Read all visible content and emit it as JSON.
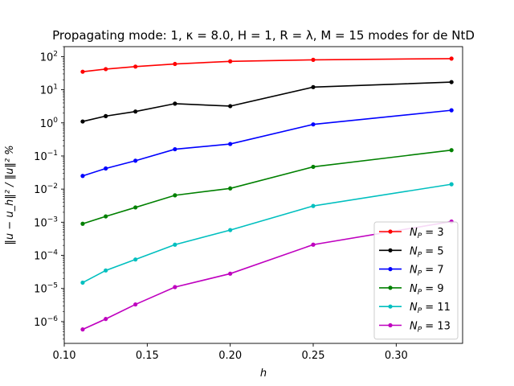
{
  "chart_data": {
    "type": "line",
    "title": "Propagating mode: 1, κ = 8.0, H = 1, R = λ, M = 15 modes for de NtD",
    "xlabel": "h",
    "ylabel": "‖u − u_h‖² / ‖u‖² %",
    "xscale": "linear",
    "yscale": "log",
    "xlim": [
      0.1,
      0.34
    ],
    "ylim": [
      2.2e-07,
      200
    ],
    "xticks": [
      "0.10",
      "0.15",
      "0.20",
      "0.25",
      "0.30"
    ],
    "xtick_values": [
      0.1,
      0.15,
      0.2,
      0.25,
      0.3
    ],
    "yticks": [
      "10^-6",
      "10^-5",
      "10^-4",
      "10^-3",
      "10^-2",
      "10^-1",
      "10^0",
      "10^1",
      "10^2"
    ],
    "ytick_exponents": [
      -6,
      -5,
      -4,
      -3,
      -2,
      -1,
      0,
      1,
      2
    ],
    "grid": false,
    "legend_position": "bottom-right",
    "x": [
      0.1111,
      0.125,
      0.1429,
      0.1667,
      0.2,
      0.25,
      0.3333
    ],
    "series": [
      {
        "name": "N_P = 3",
        "label_main": "N",
        "label_sub": "P",
        "label_rest": " = 3",
        "color": "#ff0000",
        "values": [
          35,
          42,
          50,
          60,
          72,
          80,
          87
        ]
      },
      {
        "name": "N_P = 5",
        "label_main": "N",
        "label_sub": "P",
        "label_rest": " = 5",
        "color": "#000000",
        "values": [
          1.1,
          1.6,
          2.2,
          3.8,
          3.2,
          12,
          17
        ]
      },
      {
        "name": "N_P = 7",
        "label_main": "N",
        "label_sub": "P",
        "label_rest": " = 7",
        "color": "#0000ff",
        "values": [
          0.025,
          0.042,
          0.072,
          0.16,
          0.23,
          0.9,
          2.4
        ]
      },
      {
        "name": "N_P = 9",
        "label_main": "N",
        "label_sub": "P",
        "label_rest": " = 9",
        "color": "#008000",
        "values": [
          0.0009,
          0.0015,
          0.0028,
          0.0065,
          0.0105,
          0.047,
          0.15
        ]
      },
      {
        "name": "N_P = 11",
        "label_main": "N",
        "label_sub": "P",
        "label_rest": " = 11",
        "color": "#00bfbf",
        "values": [
          1.5e-05,
          3.5e-05,
          7.5e-05,
          0.00021,
          0.00058,
          0.0031,
          0.014
        ]
      },
      {
        "name": "N_P = 13",
        "label_main": "N",
        "label_sub": "P",
        "label_rest": " = 13",
        "color": "#bf00bf",
        "values": [
          5.8e-07,
          1.2e-06,
          3.3e-06,
          1.1e-05,
          2.8e-05,
          0.00021,
          0.00105
        ]
      }
    ]
  }
}
